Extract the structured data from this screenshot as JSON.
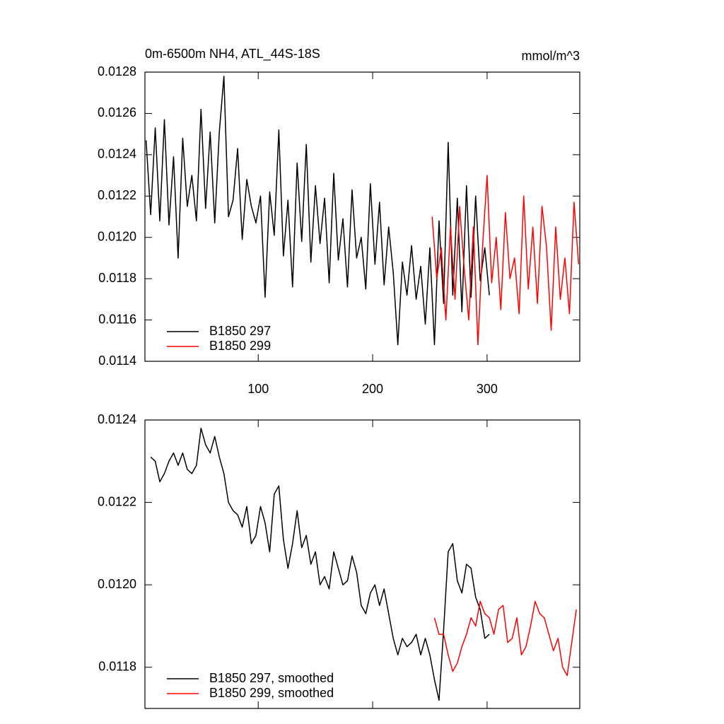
{
  "chart_data": [
    {
      "type": "line",
      "title": "0m-6500m NH4, ATL_44S-18S",
      "right_title": "mmol/m^3",
      "xlim": [
        1,
        381
      ],
      "xticks": [
        100,
        200,
        300
      ],
      "xtick_labels": true,
      "ylim": [
        0.0114,
        0.0128
      ],
      "yticks": [
        0.0114,
        0.0116,
        0.0118,
        {
          "value": 0.012,
          "label": "0.0120"
        },
        0.0122,
        0.0124,
        0.0126,
        0.0128
      ],
      "legend": "lower left",
      "series": [
        {
          "name": "B1850 297",
          "color": "#000000",
          "x": [
            2,
            6,
            10,
            14,
            18,
            22,
            26,
            30,
            34,
            38,
            42,
            46,
            50,
            54,
            58,
            62,
            66,
            70,
            74,
            78,
            82,
            86,
            90,
            94,
            98,
            102,
            106,
            110,
            114,
            118,
            122,
            126,
            130,
            134,
            138,
            142,
            146,
            150,
            154,
            158,
            162,
            166,
            170,
            174,
            178,
            182,
            186,
            190,
            194,
            198,
            202,
            206,
            210,
            214,
            218,
            222,
            226,
            230,
            234,
            238,
            242,
            246,
            250,
            254,
            258,
            262,
            266,
            270,
            274,
            278,
            282,
            286,
            290,
            294,
            298,
            302
          ],
          "values": [
            0.01247,
            0.01211,
            0.01253,
            0.01208,
            0.01257,
            0.01206,
            0.01239,
            0.0119,
            0.01248,
            0.01215,
            0.0123,
            0.01208,
            0.01262,
            0.01214,
            0.01251,
            0.01207,
            0.01251,
            0.01278,
            0.0121,
            0.01218,
            0.01243,
            0.01199,
            0.01228,
            0.01215,
            0.01207,
            0.0122,
            0.01171,
            0.01222,
            0.01201,
            0.01252,
            0.01191,
            0.01218,
            0.01176,
            0.01236,
            0.01198,
            0.01245,
            0.01188,
            0.01225,
            0.01197,
            0.01219,
            0.01178,
            0.01231,
            0.01189,
            0.01209,
            0.01176,
            0.01223,
            0.0119,
            0.012,
            0.01175,
            0.01226,
            0.01187,
            0.01217,
            0.01177,
            0.01205,
            0.01183,
            0.01148,
            0.01188,
            0.01172,
            0.01196,
            0.0117,
            0.01186,
            0.01158,
            0.01195,
            0.01148,
            0.01208,
            0.01168,
            0.01246,
            0.01172,
            0.01219,
            0.01164,
            0.01225,
            0.01171,
            0.0122,
            0.01179,
            0.01195,
            0.01172
          ]
        },
        {
          "name": "B1850 299",
          "color": "#ff0000",
          "x": [
            252,
            256,
            260,
            264,
            268,
            272,
            276,
            280,
            284,
            288,
            292,
            296,
            300,
            304,
            308,
            312,
            316,
            320,
            324,
            328,
            332,
            336,
            340,
            344,
            348,
            352,
            356,
            360,
            364,
            368,
            372,
            376,
            380
          ],
          "values": [
            0.0121,
            0.0118,
            0.01195,
            0.0116,
            0.01205,
            0.0117,
            0.01215,
            0.01185,
            0.0116,
            0.01205,
            0.01148,
            0.01195,
            0.0123,
            0.01178,
            0.012,
            0.01165,
            0.01212,
            0.0118,
            0.0119,
            0.01163,
            0.0122,
            0.01175,
            0.01205,
            0.01168,
            0.01215,
            0.01195,
            0.01155,
            0.01205,
            0.0117,
            0.0119,
            0.01163,
            0.01217,
            0.01187
          ]
        }
      ]
    },
    {
      "type": "line",
      "xlim": [
        1,
        381
      ],
      "xticks": [
        100,
        200,
        300
      ],
      "xtick_labels": false,
      "ylim": [
        0.0117,
        0.0124
      ],
      "yticks": [
        0.0118,
        {
          "value": 0.012,
          "label": "0.0120"
        },
        0.0122,
        0.0124
      ],
      "legend": "lower left",
      "series": [
        {
          "name": "B1850 297, smoothed",
          "color": "#000000",
          "x": [
            6,
            10,
            14,
            18,
            22,
            26,
            30,
            34,
            38,
            42,
            46,
            50,
            54,
            58,
            62,
            66,
            70,
            74,
            78,
            82,
            86,
            90,
            94,
            98,
            102,
            106,
            110,
            114,
            118,
            122,
            126,
            130,
            134,
            138,
            142,
            146,
            150,
            154,
            158,
            162,
            166,
            170,
            174,
            178,
            182,
            186,
            190,
            194,
            198,
            202,
            206,
            210,
            214,
            218,
            222,
            226,
            230,
            234,
            238,
            242,
            246,
            250,
            254,
            258,
            262,
            266,
            270,
            274,
            278,
            282,
            286,
            290,
            294,
            298,
            302
          ],
          "values": [
            0.01231,
            0.0123,
            0.01225,
            0.01227,
            0.0123,
            0.01232,
            0.01229,
            0.01232,
            0.01228,
            0.01227,
            0.01229,
            0.01238,
            0.01234,
            0.01232,
            0.01236,
            0.01231,
            0.01227,
            0.0122,
            0.01218,
            0.01217,
            0.01214,
            0.01219,
            0.0121,
            0.01212,
            0.01219,
            0.01215,
            0.01208,
            0.01222,
            0.01224,
            0.01211,
            0.01204,
            0.0121,
            0.01218,
            0.01209,
            0.01212,
            0.01205,
            0.01208,
            0.012,
            0.01202,
            0.01199,
            0.01208,
            0.01204,
            0.012,
            0.01201,
            0.01207,
            0.01203,
            0.01195,
            0.01193,
            0.01198,
            0.012,
            0.01195,
            0.01199,
            0.01193,
            0.01187,
            0.01183,
            0.01187,
            0.01185,
            0.01186,
            0.01188,
            0.01183,
            0.01187,
            0.01183,
            0.01177,
            0.01172,
            0.01189,
            0.01208,
            0.0121,
            0.01201,
            0.01198,
            0.01205,
            0.01204,
            0.01197,
            0.01194,
            0.01187,
            0.01188
          ]
        },
        {
          "name": "B1850 299, smoothed",
          "color": "#ff0000",
          "x": [
            254,
            258,
            262,
            266,
            270,
            274,
            278,
            282,
            286,
            290,
            294,
            298,
            302,
            306,
            310,
            314,
            318,
            322,
            326,
            330,
            334,
            338,
            342,
            346,
            350,
            354,
            358,
            362,
            366,
            370,
            374,
            378
          ],
          "values": [
            0.01192,
            0.01188,
            0.01188,
            0.01183,
            0.01179,
            0.01181,
            0.01185,
            0.01188,
            0.01192,
            0.0119,
            0.01196,
            0.01193,
            0.01192,
            0.01188,
            0.01194,
            0.01195,
            0.01186,
            0.01187,
            0.01192,
            0.01183,
            0.01185,
            0.0119,
            0.01196,
            0.01193,
            0.01192,
            0.01188,
            0.01184,
            0.01187,
            0.0118,
            0.01178,
            0.01186,
            0.01194
          ]
        }
      ]
    }
  ]
}
